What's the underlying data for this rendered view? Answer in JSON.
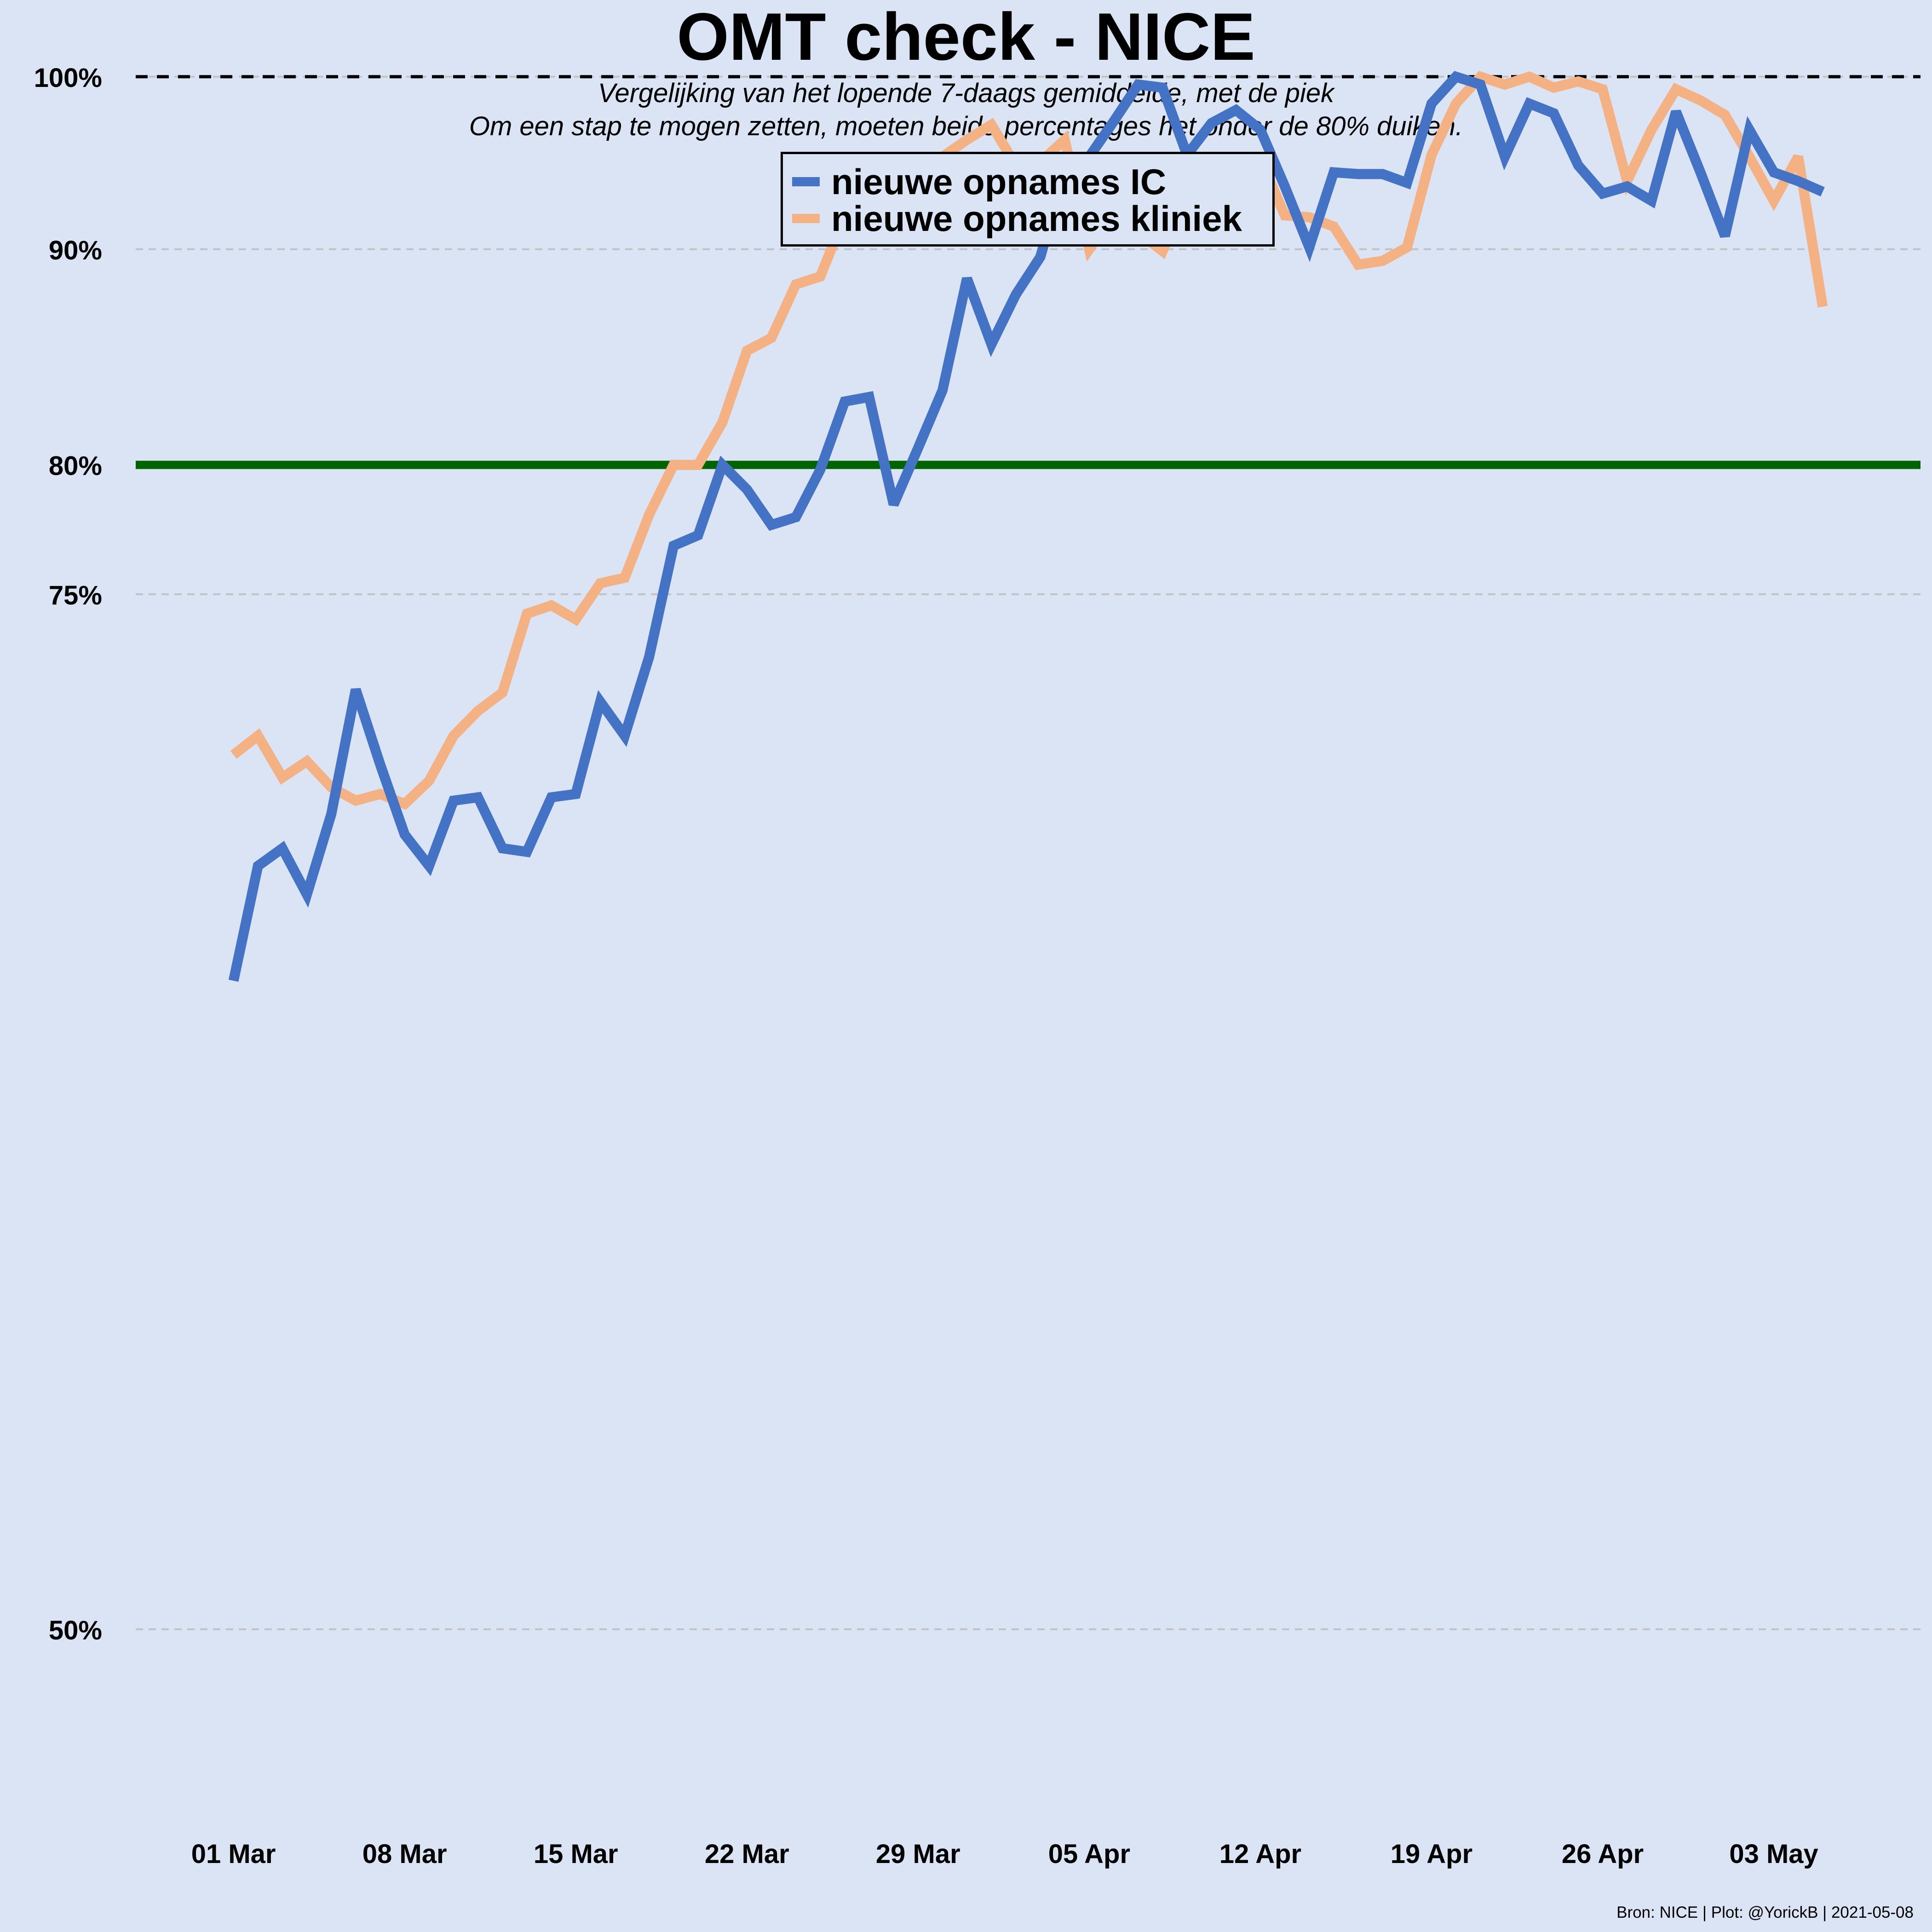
{
  "chart_data": {
    "type": "line",
    "title": "OMT check - NICE",
    "subtitle_lines": [
      "Vergelijking van het lopende 7-daags gemiddelde, met de piek",
      "Om een stap te mogen zetten, moeten beide percentages het onder de 80% duiken."
    ],
    "caption": "Bron: NICE | Plot: @YorickB |  2021-05-08",
    "xlabel": "",
    "ylabel": "",
    "x_range": [
      "2021-02-25",
      "2021-05-09"
    ],
    "y_scale": "reciprocal",
    "y_range": [
      46.5,
      100.5
    ],
    "y_ticks": [
      {
        "value": 100,
        "label": "100%"
      },
      {
        "value": 90,
        "label": "90%"
      },
      {
        "value": 80,
        "label": "80%"
      },
      {
        "value": 75,
        "label": "75%"
      },
      {
        "value": 50,
        "label": "50%"
      }
    ],
    "x_ticks": [
      {
        "date": "2021-03-01",
        "label": "01 Mar"
      },
      {
        "date": "2021-03-08",
        "label": "08 Mar"
      },
      {
        "date": "2021-03-15",
        "label": "15 Mar"
      },
      {
        "date": "2021-03-22",
        "label": "22 Mar"
      },
      {
        "date": "2021-03-29",
        "label": "29 Mar"
      },
      {
        "date": "2021-04-05",
        "label": "05 Apr"
      },
      {
        "date": "2021-04-12",
        "label": "12 Apr"
      },
      {
        "date": "2021-04-19",
        "label": "19 Apr"
      },
      {
        "date": "2021-04-26",
        "label": "26 Apr"
      },
      {
        "date": "2021-05-03",
        "label": "03 May"
      }
    ],
    "grid": "horizontal dashed",
    "legend_position": "top-center",
    "reference_lines": [
      {
        "value": 100,
        "style": "dashed",
        "color": "#000000"
      },
      {
        "value": 80,
        "style": "solid",
        "color": "#006400"
      }
    ],
    "x": [
      "2021-03-01",
      "2021-03-02",
      "2021-03-03",
      "2021-03-04",
      "2021-03-05",
      "2021-03-06",
      "2021-03-07",
      "2021-03-08",
      "2021-03-09",
      "2021-03-10",
      "2021-03-11",
      "2021-03-12",
      "2021-03-13",
      "2021-03-14",
      "2021-03-15",
      "2021-03-16",
      "2021-03-17",
      "2021-03-18",
      "2021-03-19",
      "2021-03-20",
      "2021-03-21",
      "2021-03-22",
      "2021-03-23",
      "2021-03-24",
      "2021-03-25",
      "2021-03-26",
      "2021-03-27",
      "2021-03-28",
      "2021-03-29",
      "2021-03-30",
      "2021-03-31",
      "2021-04-01",
      "2021-04-02",
      "2021-04-03",
      "2021-04-04",
      "2021-04-05",
      "2021-04-06",
      "2021-04-07",
      "2021-04-08",
      "2021-04-09",
      "2021-04-10",
      "2021-04-11",
      "2021-04-12",
      "2021-04-13",
      "2021-04-14",
      "2021-04-15",
      "2021-04-16",
      "2021-04-17",
      "2021-04-18",
      "2021-04-19",
      "2021-04-20",
      "2021-04-21",
      "2021-04-22",
      "2021-04-23",
      "2021-04-24",
      "2021-04-25",
      "2021-04-26",
      "2021-04-27",
      "2021-04-28",
      "2021-04-29",
      "2021-04-30",
      "2021-05-01",
      "2021-05-02",
      "2021-05-03",
      "2021-05-04",
      "2021-05-05"
    ],
    "series": [
      {
        "name": "nieuwe opnames IC",
        "color": "#4472c4",
        "values": [
          63.2,
          66.3,
          66.8,
          65.5,
          67.8,
          71.7,
          69.3,
          67.2,
          66.3,
          68.2,
          68.3,
          66.8,
          66.7,
          68.3,
          68.4,
          71.3,
          70.2,
          72.8,
          76.8,
          77.2,
          80.0,
          79.0,
          77.6,
          77.9,
          79.8,
          82.7,
          82.9,
          78.4,
          80.7,
          83.2,
          88.5,
          85.3,
          87.7,
          89.6,
          94.2,
          95.1,
          97.2,
          99.5,
          99.3,
          95.2,
          97.1,
          97.9,
          96.7,
          93.4,
          90.1,
          94.2,
          94.1,
          94.1,
          93.6,
          98.3,
          100.0,
          99.5,
          95.1,
          98.3,
          97.7,
          94.6,
          93.0,
          93.4,
          92.6,
          97.8,
          94.2,
          90.7,
          96.7,
          94.2,
          93.7,
          93.1
        ]
      },
      {
        "name": "nieuwe opnames kliniek",
        "color": "#f4b183",
        "values": [
          69.6,
          70.2,
          68.9,
          69.4,
          68.6,
          68.2,
          68.4,
          68.1,
          68.8,
          70.2,
          71.0,
          71.6,
          74.3,
          74.6,
          74.1,
          75.4,
          75.6,
          78.0,
          80.0,
          80.0,
          81.8,
          85.0,
          85.6,
          88.2,
          88.6,
          91.8,
          91.4,
          91.0,
          94.1,
          95.1,
          96.1,
          97.0,
          94.6,
          94.8,
          96.1,
          90.0,
          91.9,
          90.9,
          89.9,
          93.0,
          95.0,
          94.5,
          95.0,
          91.8,
          91.7,
          91.2,
          89.2,
          89.4,
          90.1,
          95.2,
          98.3,
          100.0,
          99.5,
          100.0,
          99.3,
          99.7,
          99.2,
          93.7,
          96.7,
          99.2,
          98.5,
          97.6,
          95.1,
          92.6,
          95.1,
          87.1
        ]
      }
    ]
  }
}
